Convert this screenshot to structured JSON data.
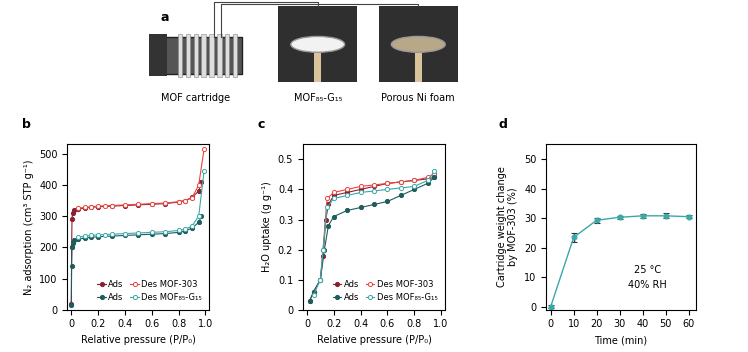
{
  "diagram": {
    "title": "a",
    "items": [
      {
        "label": "MOF cartridge"
      },
      {
        "label": "MOF₈₅-G₁₅"
      },
      {
        "label": "Porous Ni foam"
      }
    ]
  },
  "chart_data": [
    {
      "type": "line",
      "title": "b",
      "x_label": "Relative pressure (P/P₀)",
      "y_label": "N₂ adsorption (cm³ STP g⁻¹)",
      "xlim": [
        -0.03,
        1.03
      ],
      "ylim": [
        0,
        530
      ],
      "xticks": [
        0,
        0.2,
        0.4,
        0.6,
        0.8,
        1.0
      ],
      "yticks": [
        0,
        100,
        200,
        300,
        400,
        500
      ],
      "grid": false,
      "legend": "lower right",
      "series": [
        {
          "name": "Ads",
          "color": "#8b2035",
          "marker": "filled_circle",
          "line_style": "solid",
          "x": [
            0.0,
            0.002,
            0.005,
            0.01,
            0.02,
            0.05,
            0.1,
            0.15,
            0.2,
            0.3,
            0.4,
            0.5,
            0.6,
            0.7,
            0.8,
            0.85,
            0.9,
            0.95,
            0.97
          ],
          "values": [
            20,
            200,
            290,
            310,
            318,
            322,
            326,
            328,
            330,
            332,
            334,
            336,
            338,
            340,
            345,
            350,
            360,
            380,
            410
          ]
        },
        {
          "name": "Des MOF-303",
          "color": "#e8453c",
          "marker": "open_circle",
          "line_style": "solid",
          "x": [
            0.99,
            0.95,
            0.9,
            0.85,
            0.8,
            0.7,
            0.6,
            0.5,
            0.4,
            0.3,
            0.25,
            0.2,
            0.15,
            0.1,
            0.05
          ],
          "values": [
            515,
            400,
            358,
            350,
            346,
            342,
            340,
            338,
            336,
            334,
            333,
            332,
            330,
            328,
            325
          ]
        },
        {
          "name": "Ads",
          "color": "#1f5c5c",
          "marker": "filled_circle",
          "line_style": "solid",
          "x": [
            0.0,
            0.002,
            0.005,
            0.01,
            0.02,
            0.05,
            0.1,
            0.15,
            0.2,
            0.3,
            0.4,
            0.5,
            0.6,
            0.7,
            0.8,
            0.85,
            0.9,
            0.95,
            0.97
          ],
          "values": [
            15,
            140,
            200,
            215,
            222,
            226,
            230,
            232,
            234,
            236,
            238,
            240,
            242,
            244,
            248,
            252,
            262,
            280,
            300
          ]
        },
        {
          "name": "Des MOF₈₅-G₁₅",
          "color": "#3aa8a8",
          "marker": "open_circle",
          "line_style": "solid",
          "x": [
            0.99,
            0.95,
            0.9,
            0.85,
            0.8,
            0.7,
            0.6,
            0.5,
            0.4,
            0.3,
            0.25,
            0.2,
            0.15,
            0.1,
            0.05
          ],
          "values": [
            445,
            300,
            268,
            258,
            254,
            250,
            248,
            246,
            244,
            242,
            241,
            240,
            238,
            236,
            232
          ]
        }
      ]
    },
    {
      "type": "line",
      "title": "c",
      "x_label": "Relative pressure (P/P₀)",
      "y_label": "H₂O uptake (g g⁻¹)",
      "xlim": [
        -0.03,
        1.03
      ],
      "ylim": [
        0,
        0.55
      ],
      "xticks": [
        0,
        0.2,
        0.4,
        0.6,
        0.8,
        1.0
      ],
      "yticks": [
        0,
        0.1,
        0.2,
        0.3,
        0.4,
        0.5
      ],
      "grid": false,
      "legend": "lower right",
      "series": [
        {
          "name": "Ads",
          "color": "#8b2035",
          "marker": "filled_circle",
          "line_style": "solid",
          "x": [
            0.02,
            0.05,
            0.1,
            0.12,
            0.14,
            0.16,
            0.2,
            0.3,
            0.4,
            0.5,
            0.6,
            0.7,
            0.8,
            0.9,
            0.95
          ],
          "values": [
            0.03,
            0.06,
            0.1,
            0.18,
            0.3,
            0.35,
            0.38,
            0.39,
            0.4,
            0.41,
            0.42,
            0.425,
            0.43,
            0.435,
            0.44
          ]
        },
        {
          "name": "Des MOF-303",
          "color": "#e8453c",
          "marker": "open_circle",
          "line_style": "solid",
          "x": [
            0.95,
            0.9,
            0.8,
            0.7,
            0.6,
            0.5,
            0.4,
            0.3,
            0.2,
            0.15,
            0.12,
            0.1,
            0.05
          ],
          "values": [
            0.45,
            0.44,
            0.43,
            0.425,
            0.42,
            0.415,
            0.41,
            0.4,
            0.39,
            0.37,
            0.2,
            0.1,
            0.06
          ]
        },
        {
          "name": "Ads",
          "color": "#1f5c5c",
          "marker": "filled_circle",
          "line_style": "solid",
          "x": [
            0.02,
            0.05,
            0.1,
            0.13,
            0.16,
            0.2,
            0.3,
            0.4,
            0.5,
            0.6,
            0.7,
            0.8,
            0.9,
            0.95
          ],
          "values": [
            0.03,
            0.06,
            0.1,
            0.2,
            0.28,
            0.31,
            0.33,
            0.34,
            0.35,
            0.36,
            0.38,
            0.4,
            0.42,
            0.44
          ]
        },
        {
          "name": "Des MOF₈₅-G₁₅",
          "color": "#3aa8a8",
          "marker": "open_circle",
          "line_style": "solid",
          "x": [
            0.95,
            0.9,
            0.8,
            0.7,
            0.6,
            0.5,
            0.4,
            0.3,
            0.2,
            0.15,
            0.12,
            0.1,
            0.05
          ],
          "values": [
            0.46,
            0.43,
            0.41,
            0.405,
            0.4,
            0.395,
            0.39,
            0.38,
            0.37,
            0.34,
            0.2,
            0.1,
            0.05
          ]
        }
      ]
    },
    {
      "type": "line",
      "title": "d",
      "x_label": "Time (min)",
      "y_label": "Cartridge weight change\nby MOF-303 (%)",
      "annotations": [
        "25 °C",
        "40% RH"
      ],
      "xlim": [
        -2,
        63
      ],
      "ylim": [
        -1,
        55
      ],
      "xticks": [
        0,
        10,
        20,
        30,
        40,
        50,
        60
      ],
      "yticks": [
        0,
        10,
        20,
        30,
        40,
        50
      ],
      "grid": false,
      "series": [
        {
          "color": "#3aa8a8",
          "marker": "filled_circle",
          "line_style": "solid",
          "x": [
            0,
            10,
            20,
            30,
            40,
            50,
            60
          ],
          "values": [
            0,
            23.5,
            29.3,
            30.3,
            30.8,
            30.8,
            30.5
          ],
          "errors": [
            0.5,
            1.5,
            0.8,
            0.6,
            0.6,
            0.8,
            0.5
          ]
        }
      ]
    }
  ]
}
